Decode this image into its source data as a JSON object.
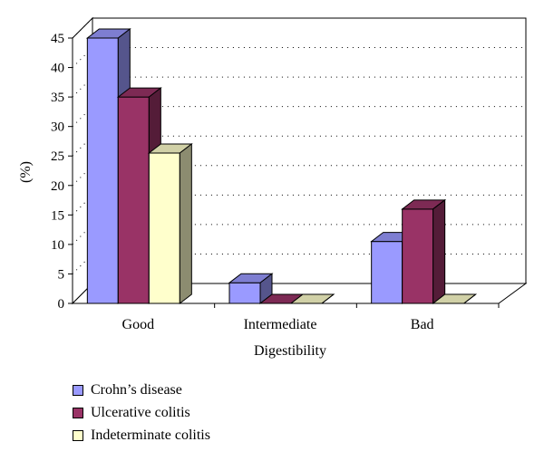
{
  "chart_data": {
    "type": "bar",
    "categories": [
      "Good",
      "Intermediate",
      "Bad"
    ],
    "series": [
      {
        "name": "Crohn’s disease",
        "values": [
          45,
          3.5,
          10.5
        ],
        "color": "#9a9aff"
      },
      {
        "name": "Ulcerative colitis",
        "values": [
          35,
          0,
          16
        ],
        "color": "#993366"
      },
      {
        "name": "Indeterminate colitis",
        "values": [
          25.5,
          0,
          0
        ],
        "color": "#ffffcc"
      }
    ],
    "xlabel": "Digestibility",
    "ylabel": "(%)",
    "ylim": [
      0,
      45
    ],
    "yticks": [
      0,
      5,
      10,
      15,
      20,
      25,
      30,
      35,
      40,
      45
    ],
    "grid": "dotted horizontal",
    "legend_position": "bottom-left",
    "style": "3d"
  }
}
